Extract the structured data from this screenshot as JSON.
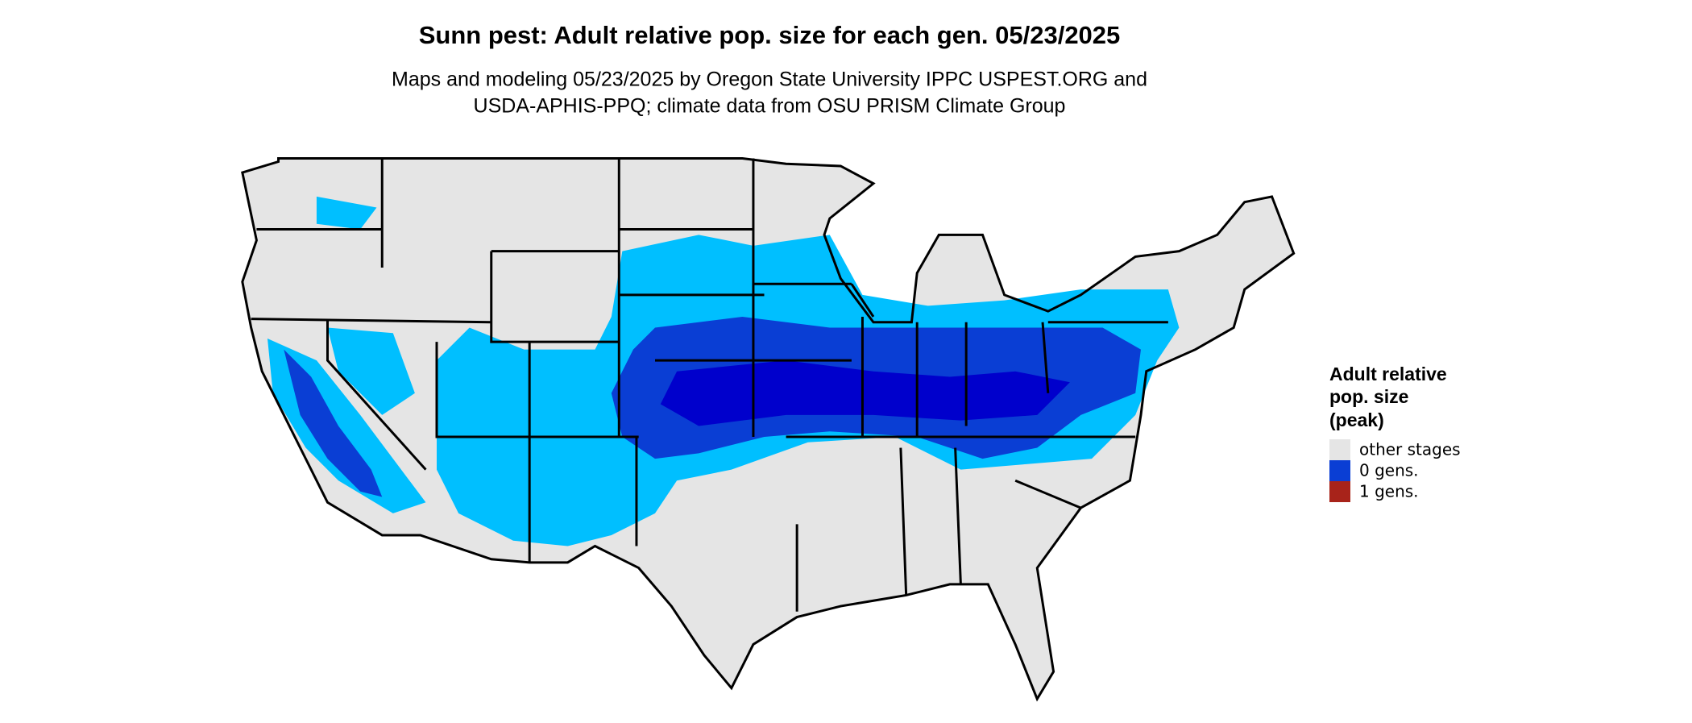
{
  "header": {
    "title": "Sunn pest: Adult relative pop. size for each gen. 05/23/2025",
    "subtitle": [
      "Maps and modeling 05/23/2025 by Oregon State University IPPC USPEST.ORG and",
      "USDA-APHIS-PPQ; climate data from OSU PRISM Climate Group"
    ]
  },
  "legend": {
    "title": [
      "Adult relative",
      "pop. size",
      "(peak)"
    ],
    "items": [
      {
        "label": "other stages",
        "color": "#e5e5e5"
      },
      {
        "label": "0 gens.",
        "color": "#0a3ed4"
      },
      {
        "label": "1 gens.",
        "color": "#a8231a"
      }
    ]
  }
}
